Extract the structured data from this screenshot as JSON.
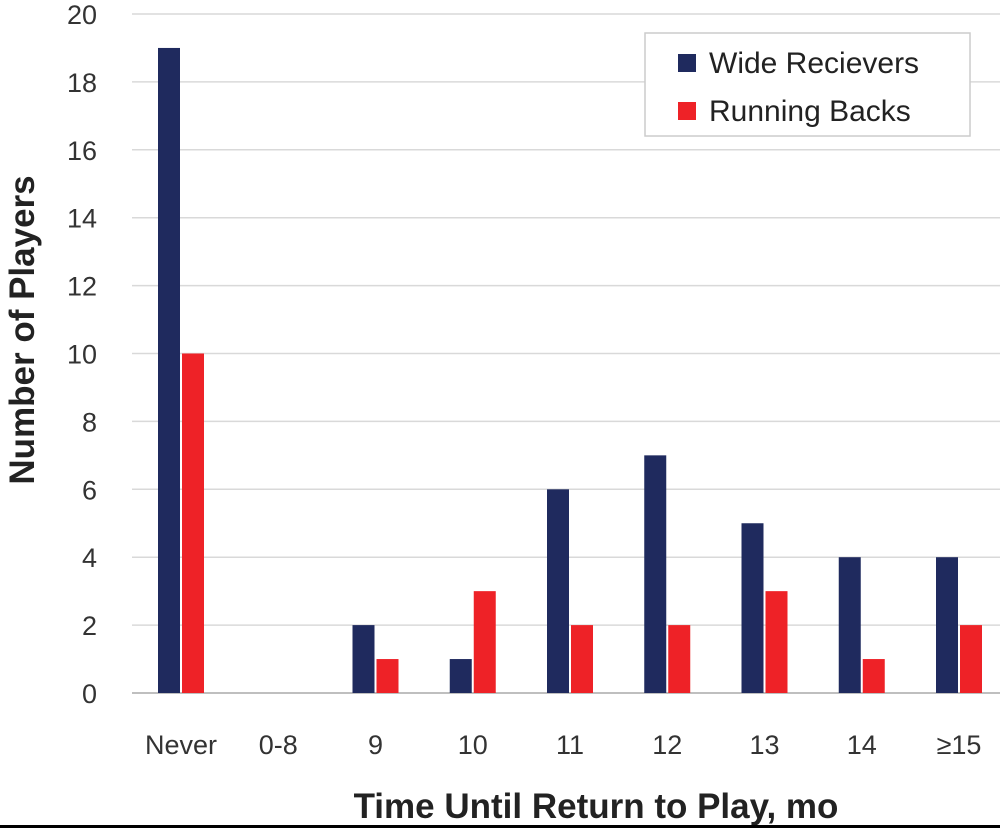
{
  "chart_data": {
    "type": "bar",
    "categories": [
      "Never",
      "0-8",
      "9",
      "10",
      "11",
      "12",
      "13",
      "14",
      "≥15"
    ],
    "series": [
      {
        "name": "Wide Recievers",
        "color": "#1f2a5e",
        "values": [
          19,
          0,
          2,
          1,
          6,
          7,
          5,
          4,
          4
        ]
      },
      {
        "name": "Running Backs",
        "color": "#ee2227",
        "values": [
          10,
          0,
          1,
          3,
          2,
          2,
          3,
          1,
          2
        ]
      }
    ],
    "title": "",
    "xlabel": "Time Until Return to Play, mo",
    "ylabel": "Number of Players",
    "ylim": [
      0,
      20
    ],
    "yticks": [
      0,
      2,
      4,
      6,
      8,
      10,
      12,
      14,
      16,
      18,
      20
    ],
    "grid": true,
    "legend_position": "top-right"
  }
}
